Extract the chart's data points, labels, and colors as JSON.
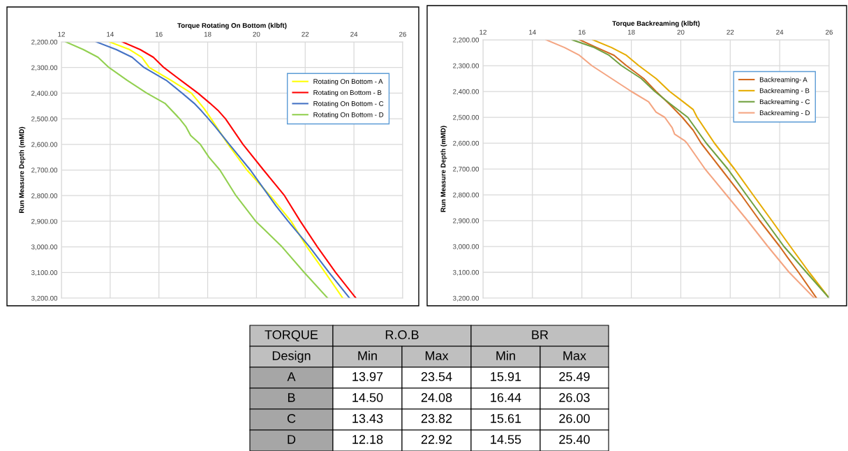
{
  "chart_data": [
    {
      "type": "line",
      "xlabel": "Torque Rotating On Bottom (klbft)",
      "ylabel": "Run Measure Depth (mMD)",
      "xlim": [
        12,
        26
      ],
      "xticks": [
        12,
        14,
        16,
        18,
        20,
        22,
        24,
        26
      ],
      "ylim": [
        3200,
        2200
      ],
      "yticks": [
        {
          "value": 2200,
          "label": "2,200.00"
        },
        {
          "value": 2300,
          "label": "2,300.00"
        },
        {
          "value": 2400,
          "label": "2,400.00"
        },
        {
          "value": 2500,
          "label": "2,500.00"
        },
        {
          "value": 2600,
          "label": "2,600.00"
        },
        {
          "value": 2700,
          "label": "2,700.00"
        },
        {
          "value": 2800,
          "label": "2,800.00"
        },
        {
          "value": 2900,
          "label": "2,900.00"
        },
        {
          "value": 3000,
          "label": "3,000.00"
        },
        {
          "value": 3100,
          "label": "3,100.00"
        },
        {
          "value": 3200,
          "label": "3,200.00"
        }
      ],
      "grid": true,
      "legend": "top right",
      "series": [
        {
          "name": "Rotating On Bottom - A",
          "color": "#ffff00",
          "x": [
            13.97,
            14.8,
            15.3,
            15.6,
            16.5,
            17.33,
            17.85,
            18.14,
            18.84,
            19.61,
            20.56,
            21.42,
            22.07,
            22.82,
            23.54
          ],
          "values": [
            2200,
            2230,
            2260,
            2300,
            2350,
            2400,
            2460,
            2500,
            2600,
            2700,
            2800,
            2900,
            3000,
            3100,
            3200
          ]
        },
        {
          "name": "Rotating on Bottom - B",
          "color": "#ff0000",
          "x": [
            14.5,
            15.23,
            15.77,
            16.2,
            16.9,
            17.6,
            18.1,
            18.45,
            18.73,
            19.45,
            20.29,
            21.15,
            21.8,
            22.5,
            23.25,
            24.08
          ],
          "values": [
            2200,
            2230,
            2260,
            2300,
            2350,
            2400,
            2440,
            2470,
            2500,
            2600,
            2700,
            2800,
            2900,
            3000,
            3100,
            3200
          ]
        },
        {
          "name": "Rotating On Bottom - C",
          "color": "#4472c4",
          "x": [
            13.43,
            14.25,
            14.9,
            15.39,
            16.3,
            16.95,
            17.45,
            17.75,
            18.03,
            18.3,
            18.89,
            19.75,
            20.5,
            20.8,
            21.3,
            22.18,
            22.98,
            23.82
          ],
          "values": [
            2200,
            2230,
            2260,
            2300,
            2350,
            2400,
            2440,
            2470,
            2500,
            2530,
            2600,
            2700,
            2800,
            2840,
            2900,
            3000,
            3100,
            3200
          ]
        },
        {
          "name": "Rotating On Bottom - D",
          "color": "#92d050",
          "x": [
            12.18,
            12.9,
            13.5,
            13.95,
            14.7,
            15.5,
            16.25,
            16.85,
            17.1,
            17.3,
            17.7,
            18.05,
            18.5,
            19.16,
            19.97,
            20.3,
            21.05,
            21.96,
            22.92
          ],
          "values": [
            2200,
            2230,
            2260,
            2300,
            2350,
            2400,
            2440,
            2500,
            2530,
            2565,
            2600,
            2650,
            2700,
            2800,
            2900,
            2930,
            3000,
            3100,
            3200
          ]
        }
      ]
    },
    {
      "type": "line",
      "xlabel": "Torque Backreaming (klbft)",
      "ylabel": "Run Measure Depth (mMD)",
      "xlim": [
        12,
        26
      ],
      "xticks": [
        12,
        14,
        16,
        18,
        20,
        22,
        24,
        26
      ],
      "ylim": [
        3200,
        2200
      ],
      "yticks": [
        {
          "value": 2200,
          "label": "2,200.00"
        },
        {
          "value": 2300,
          "label": "2,300.00"
        },
        {
          "value": 2400,
          "label": "2,400.00"
        },
        {
          "value": 2500,
          "label": "2,500.00"
        },
        {
          "value": 2600,
          "label": "2,600.00"
        },
        {
          "value": 2700,
          "label": "2,700.00"
        },
        {
          "value": 2800,
          "label": "2,800.00"
        },
        {
          "value": 2900,
          "label": "2,900.00"
        },
        {
          "value": 3000,
          "label": "3,000.00"
        },
        {
          "value": 3100,
          "label": "3,100.00"
        },
        {
          "value": 3200,
          "label": "3,200.00"
        }
      ],
      "grid": true,
      "legend": "top right",
      "series": [
        {
          "name": "Backreaming- A",
          "color": "#d2691e",
          "x": [
            15.91,
            16.6,
            17.3,
            17.8,
            18.5,
            19.0,
            19.55,
            20.06,
            20.5,
            20.82,
            21.63,
            22.44,
            23.19,
            24.0,
            24.3,
            24.76,
            25.49
          ],
          "values": [
            2200,
            2230,
            2260,
            2300,
            2350,
            2400,
            2450,
            2500,
            2550,
            2600,
            2700,
            2800,
            2900,
            3000,
            3040,
            3100,
            3200
          ]
        },
        {
          "name": "Backreaming - B",
          "color": "#e6ac00",
          "x": [
            16.44,
            17.2,
            17.8,
            18.3,
            19.0,
            19.55,
            20.1,
            20.5,
            20.66,
            21.36,
            22.17,
            22.92,
            23.68,
            24.43,
            25.19,
            26.0
          ],
          "values": [
            2200,
            2230,
            2260,
            2300,
            2350,
            2400,
            2440,
            2470,
            2500,
            2600,
            2700,
            2800,
            2900,
            3000,
            3100,
            3200
          ]
        },
        {
          "name": "Backreaming - C",
          "color": "#70a040",
          "x": [
            15.61,
            16.5,
            17.1,
            17.6,
            18.4,
            18.95,
            19.6,
            20.28,
            21.03,
            21.9,
            22.65,
            23.41,
            24.17,
            25.08,
            26.0
          ],
          "values": [
            2200,
            2230,
            2260,
            2300,
            2350,
            2400,
            2450,
            2500,
            2600,
            2700,
            2800,
            2900,
            3000,
            3100,
            3200
          ]
        },
        {
          "name": "Backreaming - D",
          "color": "#f4a582",
          "x": [
            14.55,
            15.3,
            15.9,
            16.4,
            17.2,
            18.0,
            18.7,
            19.0,
            19.35,
            19.65,
            19.75,
            20.15,
            20.25,
            20.98,
            21.84,
            22.7,
            23.52,
            24.38,
            25.4
          ],
          "values": [
            2200,
            2230,
            2260,
            2300,
            2350,
            2400,
            2440,
            2480,
            2500,
            2540,
            2565,
            2590,
            2600,
            2700,
            2800,
            2900,
            3000,
            3100,
            3200
          ]
        }
      ]
    },
    {
      "type": "other",
      "annotations": [
        "TORQUE",
        "R.O.B",
        "BR",
        "Design",
        "Min",
        "Max",
        "Min",
        "Max",
        "A",
        "13.97",
        "23.54",
        "15.91",
        "25.49",
        "B",
        "14.50",
        "24.08",
        "16.44",
        "26.03",
        "C",
        "13.43",
        "23.82",
        "15.61",
        "26.00",
        "D",
        "12.18",
        "22.92",
        "14.55",
        "25.40"
      ]
    }
  ]
}
